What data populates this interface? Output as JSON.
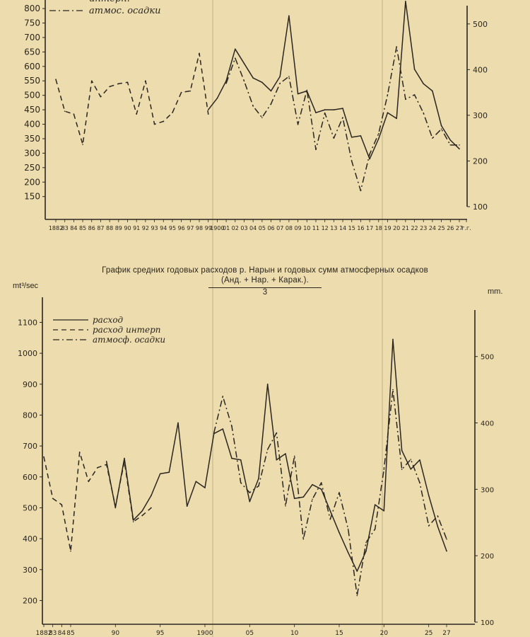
{
  "colors": {
    "paper": "#ecdcae",
    "ink": "#2b2620"
  },
  "middle_title": {
    "line1": "График  средних годовых расходов р. Нарын и годовых сумм атмосферных осадков",
    "line2": "(Анд. + Нар. + Карак.).",
    "line3": "3"
  },
  "units": {
    "left": "mt³/sec",
    "right": "mm."
  },
  "chart_data": [
    {
      "type": "line",
      "title": "",
      "partial": true,
      "y_ticks_left": [
        "800",
        "750",
        "700",
        "650",
        "600",
        "550",
        "500",
        "450",
        "400",
        "350",
        "300",
        "250",
        "200",
        "150"
      ],
      "y_ticks_right": [
        "500",
        "400",
        "300",
        "200",
        "100"
      ],
      "ylim_left": [
        115,
        810
      ],
      "ylim_right": [
        100,
        540
      ],
      "x_tick_labels": [
        "1882",
        "83",
        "84",
        "85",
        "86",
        "87",
        "88",
        "89",
        "90",
        "91",
        "92",
        "93",
        "94",
        "95",
        "96",
        "97",
        "98",
        "99",
        "1900",
        "01",
        "02",
        "03",
        "04",
        "05",
        "06",
        "07",
        "08",
        "09",
        "10",
        "11",
        "12",
        "13",
        "14",
        "15",
        "16",
        "17",
        "18",
        "19",
        "20",
        "21",
        "22",
        "23",
        "24",
        "25",
        "26",
        "27",
        "г.г."
      ],
      "legend": [
        "интерп.",
        "атмос. осадки"
      ],
      "series": [
        {
          "name": "расход",
          "style": "solid",
          "axis": "left",
          "x": [
            1899,
            1900,
            1901,
            1902,
            1903,
            1904,
            1905,
            1906,
            1907,
            1908,
            1909,
            1910,
            1911,
            1912,
            1913,
            1914,
            1915,
            1916,
            1917,
            1918,
            1919,
            1920,
            1921,
            1922,
            1923,
            1924,
            1925,
            1926,
            1927
          ],
          "y": [
            450,
            490,
            550,
            660,
            610,
            560,
            545,
            515,
            565,
            775,
            505,
            515,
            440,
            450,
            450,
            455,
            355,
            360,
            280,
            350,
            440,
            420,
            825,
            590,
            540,
            515,
            395,
            345,
            315
          ]
        },
        {
          "name": "интерп.",
          "style": "dashed",
          "axis": "left",
          "x": [
            1882,
            1883,
            1884,
            1885,
            1886,
            1887,
            1888,
            1889,
            1890,
            1891,
            1892,
            1893,
            1894,
            1895,
            1896,
            1897,
            1898,
            1899
          ],
          "y": [
            555,
            445,
            435,
            330,
            550,
            495,
            530,
            540,
            545,
            435,
            550,
            400,
            410,
            440,
            510,
            515,
            645,
            435
          ]
        },
        {
          "name": "атмос. осадки",
          "style": "dashdot",
          "axis": "right",
          "x": [
            1901,
            1902,
            1903,
            1904,
            1905,
            1906,
            1907,
            1908,
            1909,
            1910,
            1911,
            1912,
            1913,
            1914,
            1915,
            1916,
            1917,
            1918,
            1919,
            1920,
            1921,
            1922,
            1923,
            1924,
            1925,
            1926,
            1927
          ],
          "y": [
            370,
            425,
            375,
            320,
            295,
            325,
            370,
            385,
            280,
            355,
            225,
            305,
            250,
            295,
            200,
            135,
            215,
            260,
            345,
            450,
            335,
            345,
            305,
            250,
            270,
            235,
            235
          ]
        }
      ]
    },
    {
      "type": "line",
      "title": "",
      "y_ticks_left": [
        "1100",
        "1000",
        "900",
        "800",
        "700",
        "600",
        "500",
        "400",
        "300",
        "200"
      ],
      "y_ticks_right": [
        "500",
        "400",
        "300",
        "200",
        "100"
      ],
      "ylim_left": [
        130,
        1140
      ],
      "ylim_right": [
        100,
        570
      ],
      "x_tick_labels": [
        "1882",
        "83",
        "84",
        "85",
        "90",
        "95",
        "1900",
        "05",
        "10",
        "15",
        "20",
        "25",
        "27"
      ],
      "legend": [
        "расход",
        "расход интерп",
        "атмосф. осадки"
      ],
      "series": [
        {
          "name": "расход",
          "style": "solid",
          "axis": "left",
          "x": [
            1889,
            1890,
            1891,
            1892,
            1893,
            1894,
            1895,
            1896,
            1897,
            1898,
            1899,
            1900,
            1901,
            1902,
            1903,
            1904,
            1905,
            1906,
            1907,
            1908,
            1909,
            1910,
            1911,
            1912,
            1913,
            1914,
            1915,
            1916,
            1917,
            1918,
            1919,
            1920,
            1921,
            1922,
            1923,
            1924,
            1925,
            1926,
            1927
          ],
          "y": [
            650,
            500,
            660,
            460,
            490,
            540,
            610,
            615,
            775,
            505,
            585,
            565,
            740,
            755,
            660,
            655,
            520,
            595,
            900,
            655,
            675,
            530,
            535,
            575,
            560,
            490,
            420,
            355,
            295,
            360,
            510,
            490,
            1045,
            685,
            625,
            655,
            540,
            440,
            360
          ]
        },
        {
          "name": "расход интерп",
          "style": "dashed",
          "axis": "left",
          "x": [
            1882,
            1883,
            1884,
            1885,
            1886,
            1887,
            1888,
            1889,
            1890,
            1891,
            1892,
            1893,
            1894
          ],
          "y": [
            665,
            530,
            510,
            360,
            680,
            585,
            630,
            640,
            505,
            650,
            455,
            475,
            500
          ]
        },
        {
          "name": "атмосф. осадки",
          "style": "dashdot",
          "axis": "right",
          "x": [
            1901,
            1902,
            1903,
            1904,
            1905,
            1906,
            1907,
            1908,
            1909,
            1910,
            1911,
            1912,
            1913,
            1914,
            1915,
            1916,
            1917,
            1918,
            1919,
            1920,
            1921,
            1922,
            1923,
            1924,
            1925,
            1926,
            1927
          ],
          "y": [
            385,
            440,
            395,
            310,
            295,
            305,
            360,
            385,
            275,
            350,
            225,
            285,
            310,
            255,
            295,
            240,
            140,
            220,
            240,
            330,
            450,
            330,
            345,
            310,
            245,
            260,
            225
          ]
        }
      ]
    }
  ]
}
